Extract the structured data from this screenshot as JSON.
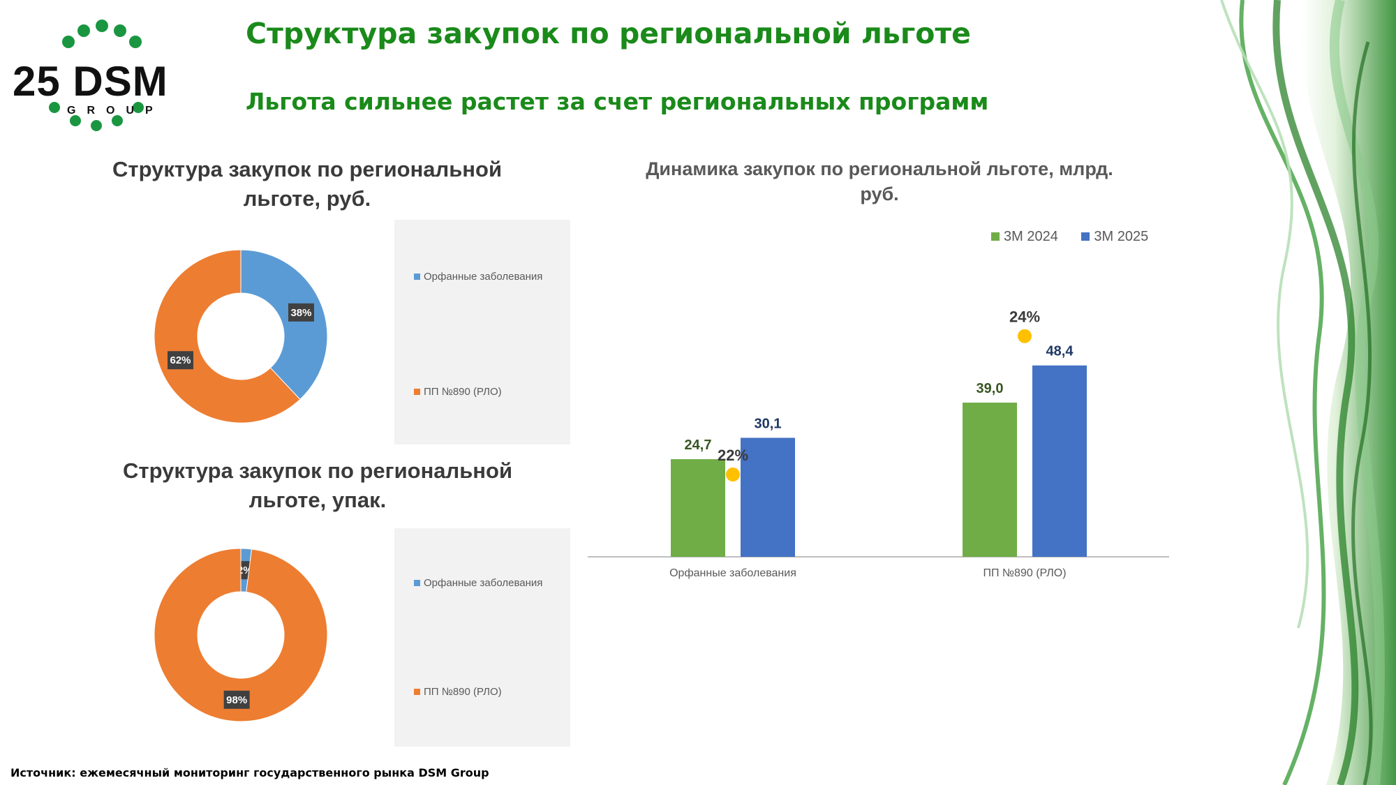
{
  "header": {
    "title": "Структура закупок по региональной льготе",
    "subtitle": "Льгота сильнее растет за счет региональных программ"
  },
  "logo": {
    "text": "25 DSM",
    "subtext": "GROUP"
  },
  "source": "Источник: ежемесячный мониторинг государственного рынка DSM Group",
  "chart_data": [
    {
      "type": "pie",
      "title_line1": "Структура закупок по региональной",
      "title_line2": "льготе, руб.",
      "categories": [
        "Орфанные заболевания",
        "ПП №890 (РЛО)"
      ],
      "values": [
        38,
        62
      ],
      "labels": [
        "38%",
        "62%"
      ],
      "colors": [
        "#5b9bd5",
        "#ed7d31"
      ],
      "legend_position": "right"
    },
    {
      "type": "pie",
      "title_line1": "Структура закупок по региональной",
      "title_line2": "льготе, упак.",
      "categories": [
        "Орфанные заболевания",
        "ПП №890 (РЛО)"
      ],
      "values": [
        2,
        98
      ],
      "labels": [
        "2%",
        "98%"
      ],
      "colors": [
        "#5b9bd5",
        "#ed7d31"
      ],
      "legend_position": "right"
    },
    {
      "type": "bar",
      "title_line1": "Динамика закупок по региональной льготе, млрд.",
      "title_line2": "руб.",
      "categories": [
        "Орфанные заболевания",
        "ПП №890 (РЛО)"
      ],
      "series": [
        {
          "name": "3М 2024",
          "values": [
            24.7,
            39.0
          ],
          "labels": [
            "24,7",
            "39,0"
          ],
          "color": "#70ad47",
          "label_color": "#375623"
        },
        {
          "name": "3М 2025",
          "values": [
            30.1,
            48.4
          ],
          "labels": [
            "30,1",
            "48,4"
          ],
          "color": "#4472c4",
          "label_color": "#1f3864"
        }
      ],
      "growth": [
        "22%",
        "24%"
      ],
      "growth_marker_color": "#ffc000",
      "ylim": [
        0,
        60
      ],
      "legend_position": "top-right"
    }
  ]
}
